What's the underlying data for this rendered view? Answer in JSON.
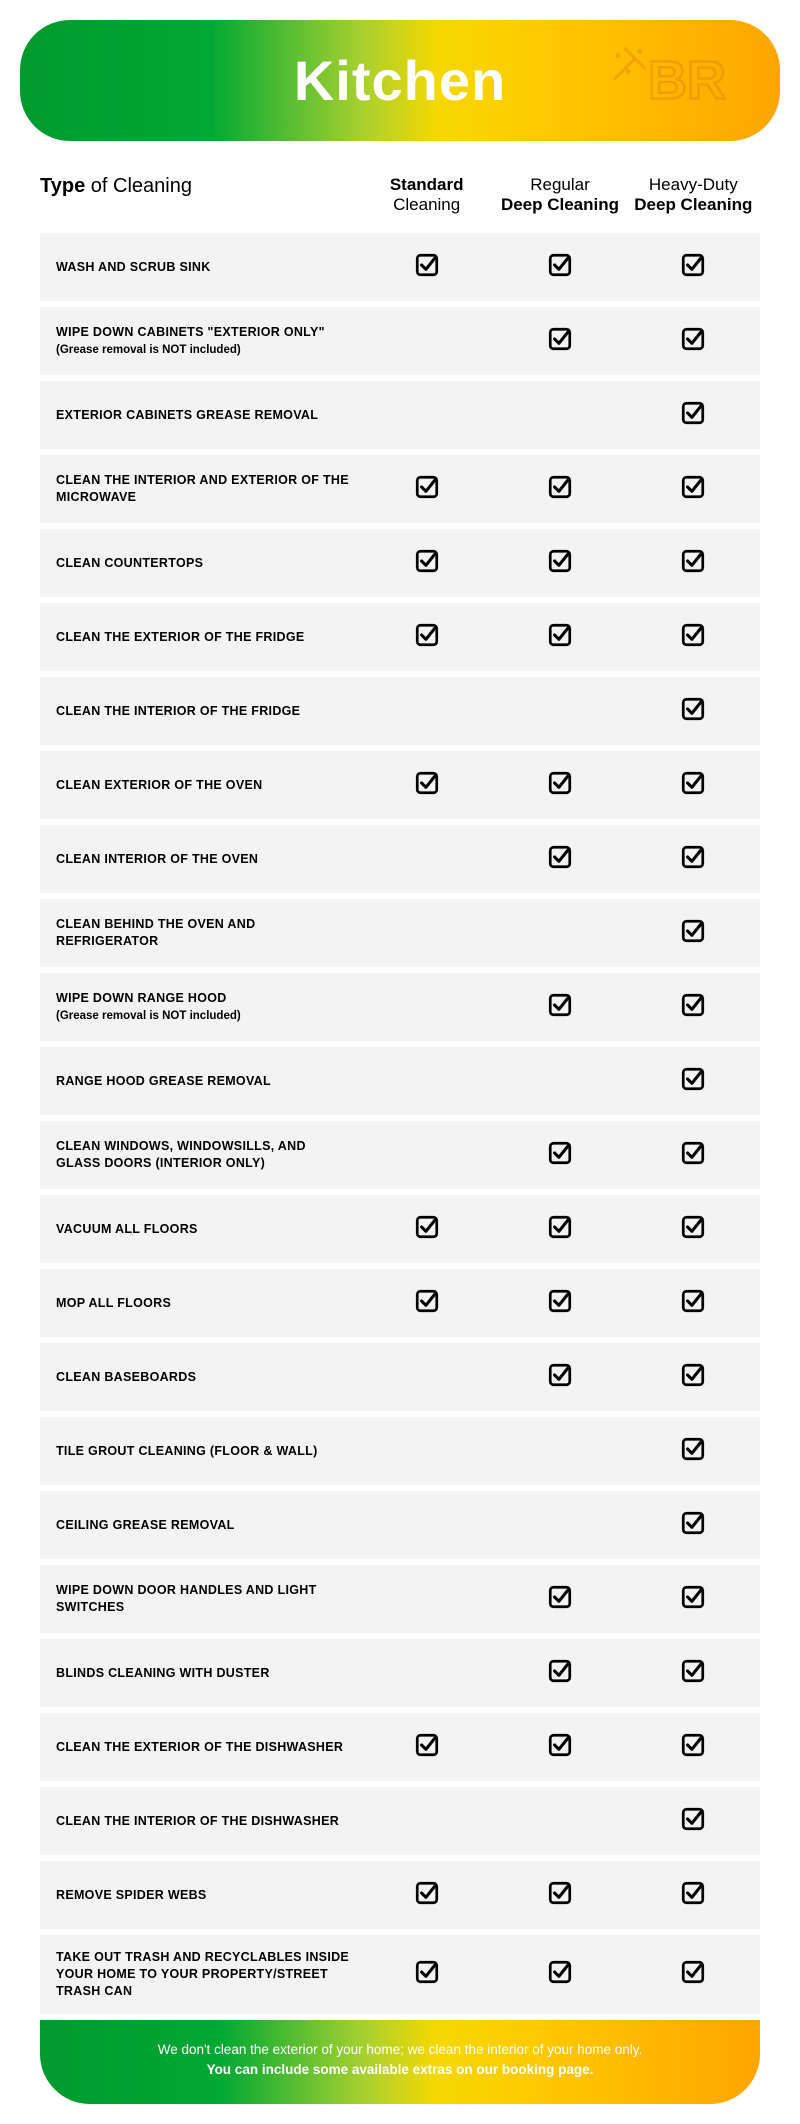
{
  "header": {
    "title": "Kitchen",
    "gradient_colors": [
      "#009a2f",
      "#00a834",
      "#a8d030",
      "#f5d800",
      "#ffc800",
      "#ffa500"
    ],
    "title_color": "#ffffff",
    "title_fontsize": 56,
    "title_weight": 800,
    "logo_text": "BR",
    "logo_opacity": 0.5
  },
  "table": {
    "type_label_bold": "Type",
    "type_label_rest": " of Cleaning",
    "columns": [
      {
        "line1": "Standard",
        "line2": "Cleaning",
        "bold_line": 1
      },
      {
        "line1": "Regular",
        "line2": "Deep Cleaning",
        "bold_line": 2
      },
      {
        "line1": "Heavy-Duty",
        "line2": "Deep Cleaning",
        "bold_line": 2
      }
    ],
    "row_bg_color": "#f3f3f3",
    "row_gap": 6,
    "label_fontsize": 12.5,
    "note_fontsize": 11.5,
    "check_color": "#000000",
    "rows": [
      {
        "label": "WASH AND SCRUB SINK",
        "note": "",
        "checks": [
          true,
          true,
          true
        ]
      },
      {
        "label": "WIPE DOWN CABINETS \"EXTERIOR ONLY\"",
        "note": "(Grease removal is NOT included)",
        "checks": [
          false,
          true,
          true
        ]
      },
      {
        "label": "EXTERIOR CABINETS GREASE REMOVAL",
        "note": "",
        "checks": [
          false,
          false,
          true
        ]
      },
      {
        "label": "CLEAN THE INTERIOR AND EXTERIOR OF THE MICROWAVE",
        "note": "",
        "checks": [
          true,
          true,
          true
        ]
      },
      {
        "label": "CLEAN COUNTERTOPS",
        "note": "",
        "checks": [
          true,
          true,
          true
        ]
      },
      {
        "label": "CLEAN THE EXTERIOR OF THE FRIDGE",
        "note": "",
        "checks": [
          true,
          true,
          true
        ]
      },
      {
        "label": "CLEAN THE INTERIOR OF THE FRIDGE",
        "note": "",
        "checks": [
          false,
          false,
          true
        ]
      },
      {
        "label": "CLEAN EXTERIOR OF THE OVEN",
        "note": "",
        "checks": [
          true,
          true,
          true
        ]
      },
      {
        "label": "CLEAN INTERIOR OF THE OVEN",
        "note": "",
        "checks": [
          false,
          true,
          true
        ]
      },
      {
        "label": "CLEAN BEHIND THE OVEN AND REFRIGERATOR",
        "note": "",
        "checks": [
          false,
          false,
          true
        ]
      },
      {
        "label": "WIPE DOWN RANGE HOOD",
        "note": "(Grease removal is NOT included)",
        "checks": [
          false,
          true,
          true
        ]
      },
      {
        "label": "RANGE HOOD GREASE REMOVAL",
        "note": "",
        "checks": [
          false,
          false,
          true
        ]
      },
      {
        "label": "CLEAN WINDOWS, WINDOWSILLS, AND GLASS DOORS (Interior only)",
        "note": "",
        "checks": [
          false,
          true,
          true
        ]
      },
      {
        "label": "VACUUM ALL FLOORS",
        "note": "",
        "checks": [
          true,
          true,
          true
        ]
      },
      {
        "label": "MOP ALL FLOORS",
        "note": "",
        "checks": [
          true,
          true,
          true
        ]
      },
      {
        "label": "CLEAN BASEBOARDS",
        "note": "",
        "checks": [
          false,
          true,
          true
        ]
      },
      {
        "label": "TILE GROUT CLEANING (FLOOR & WALL)",
        "note": "",
        "checks": [
          false,
          false,
          true
        ]
      },
      {
        "label": "CEILING GREASE REMOVAL",
        "note": "",
        "checks": [
          false,
          false,
          true
        ]
      },
      {
        "label": "WIPE DOWN DOOR HANDLES AND LIGHT SWITCHES",
        "note": "",
        "checks": [
          false,
          true,
          true
        ]
      },
      {
        "label": "BLINDS CLEANING WITH DUSTER",
        "note": "",
        "checks": [
          false,
          true,
          true
        ]
      },
      {
        "label": "CLEAN THE EXTERIOR OF THE DISHWASHER",
        "note": "",
        "checks": [
          true,
          true,
          true
        ]
      },
      {
        "label": "CLEAN THE INTERIOR OF THE DISHWASHER",
        "note": "",
        "checks": [
          false,
          false,
          true
        ]
      },
      {
        "label": "REMOVE SPIDER WEBS",
        "note": "",
        "checks": [
          true,
          true,
          true
        ]
      },
      {
        "label": "TAKE OUT TRASH AND RECYCLABLES INSIDE YOUR HOME TO YOUR PROPERTY/STREET TRASH CAN",
        "note": "",
        "checks": [
          true,
          true,
          true
        ]
      }
    ]
  },
  "footer": {
    "line1": "We don't clean the exterior of your home; we clean the interior of your home only.",
    "line2": "You can include some available extras on our booking page.",
    "text_color": "#ffffff",
    "line1_weight": 500,
    "line2_weight": 800,
    "fontsize": 13.5
  }
}
